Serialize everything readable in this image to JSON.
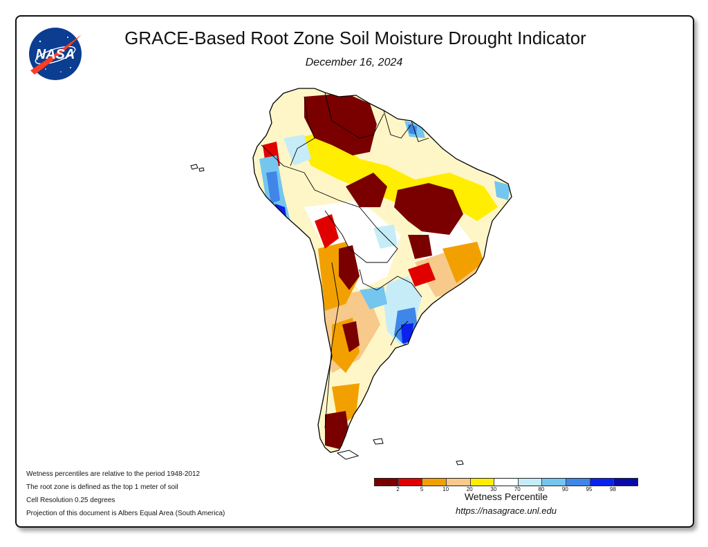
{
  "header": {
    "title": "GRACE-Based Root Zone Soil Moisture Drought Indicator",
    "date": "December 16, 2024",
    "logo_text": "NASA"
  },
  "map": {
    "region": "South America",
    "classes": [
      {
        "label": "dark red",
        "color": "#7a0000"
      },
      {
        "label": "red",
        "color": "#e00000"
      },
      {
        "label": "orange",
        "color": "#f2a000"
      },
      {
        "label": "tan",
        "color": "#f7c98a"
      },
      {
        "label": "yellow",
        "color": "#ffee00"
      },
      {
        "label": "white",
        "color": "#ffffff"
      },
      {
        "label": "pale blue",
        "color": "#c6ecf7"
      },
      {
        "label": "light blue",
        "color": "#74c6ee"
      },
      {
        "label": "blue",
        "color": "#3f86e8"
      },
      {
        "label": "bright blue",
        "color": "#0a22ee"
      },
      {
        "label": "dark blue",
        "color": "#0a0aa8"
      }
    ]
  },
  "notes": [
    "Wetness percentiles are relative to the period 1948-2012",
    "The root zone is defined as the top 1 meter of soil",
    "Cell Resolution 0.25 degrees",
    "Projection of this document is Albers Equal Area (South America)"
  ],
  "legend": {
    "title": "Wetness Percentile",
    "colors": [
      "#7a0000",
      "#e00000",
      "#f2a000",
      "#f7c98a",
      "#ffee00",
      "#ffffff",
      "#c6ecf7",
      "#74c6ee",
      "#3f86e8",
      "#0a22ee",
      "#0a0aa8"
    ],
    "ticks": [
      "2",
      "5",
      "10",
      "20",
      "30",
      "70",
      "80",
      "90",
      "95",
      "98"
    ]
  },
  "footer": {
    "url": "https://nasagrace.unl.edu"
  }
}
